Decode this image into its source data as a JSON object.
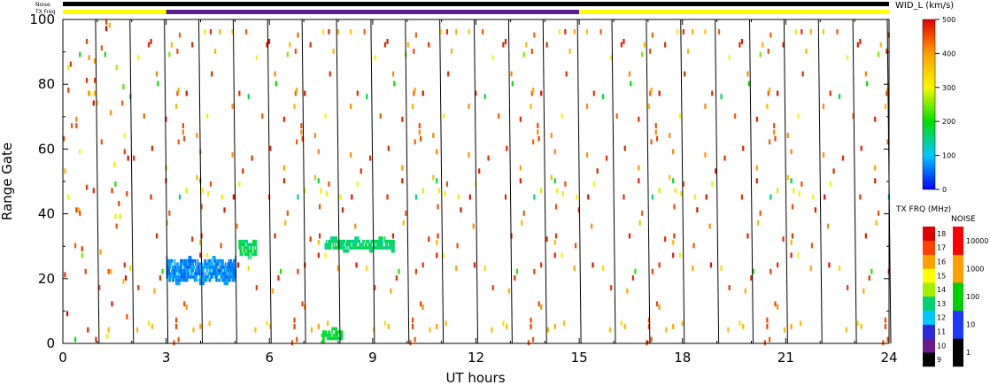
{
  "chart_data": {
    "type": "heatmap",
    "title": "",
    "xlabel": "UT hours",
    "ylabel": "Range Gate",
    "xlim": [
      0,
      24
    ],
    "ylim": [
      0,
      100
    ],
    "x_ticks": [
      "0",
      "3",
      "6",
      "9",
      "12",
      "15",
      "18",
      "21",
      "24"
    ],
    "x_tick_values": [
      0,
      3,
      6,
      9,
      12,
      15,
      18,
      21,
      24
    ],
    "y_ticks": [
      "0",
      "20",
      "40",
      "60",
      "80",
      "100"
    ],
    "y_tick_values": [
      0,
      20,
      40,
      60,
      80,
      100
    ],
    "scan_boundaries_ut": [
      1,
      2,
      3,
      4,
      5,
      6,
      7,
      8,
      9,
      10,
      11,
      12,
      13,
      14,
      15,
      16,
      17,
      18,
      19,
      20,
      21,
      22,
      23,
      24
    ],
    "top_bars": {
      "noise_label": "Noise",
      "txfreq_label": "TX Freq",
      "noise_color": "#000000",
      "txfreq_segments": [
        {
          "start": 0,
          "end": 3,
          "color": "#ffff00"
        },
        {
          "start": 3,
          "end": 15,
          "color": "#5a1f8e"
        },
        {
          "start": 15,
          "end": 24,
          "color": "#ffff00"
        }
      ]
    },
    "width_scale": {
      "title": "WID_L (km/s)",
      "tick_labels": [
        "0",
        "100",
        "200",
        "300",
        "400",
        "500"
      ],
      "tick_values": [
        0,
        100,
        200,
        300,
        400,
        500
      ],
      "range": [
        0,
        500
      ]
    },
    "txfreq_scale": {
      "title": "TX FRQ (MHz)",
      "tick_labels": [
        "9",
        "10",
        "11",
        "12",
        "13",
        "14",
        "15",
        "16",
        "17",
        "18"
      ],
      "colors": [
        "#000000",
        "#6a1a8a",
        "#2a2ad8",
        "#00c8ff",
        "#00d070",
        "#a0f000",
        "#ffff00",
        "#ffa000",
        "#ff4000",
        "#e00000"
      ]
    },
    "noise_scale": {
      "title": "NOISE",
      "tick_labels": [
        "1",
        "10",
        "100",
        "1000",
        "10000"
      ],
      "colors": [
        "#000000",
        "#1a3aff",
        "#00d000",
        "#ffa000",
        "#ff0000"
      ]
    },
    "echo_bands": [
      {
        "name": "",
        "ut_start": 3.0,
        "ut_end": 5.0,
        "gate_center": 22,
        "gate_spread": 2.5,
        "width_kms": 70
      },
      {
        "name": "",
        "ut_start": 5.1,
        "ut_end": 5.6,
        "gate_center": 29,
        "gate_spread": 1.5,
        "width_kms": 170
      },
      {
        "name": "",
        "ut_start": 7.6,
        "ut_end": 9.6,
        "gate_center": 30,
        "gate_spread": 0.6,
        "width_kms": 160
      },
      {
        "name": "",
        "ut_start": 7.5,
        "ut_end": 8.1,
        "gate_center": 2,
        "gate_spread": 0.6,
        "width_kms": 180
      }
    ],
    "scatter_fraction": 0.0085
  }
}
